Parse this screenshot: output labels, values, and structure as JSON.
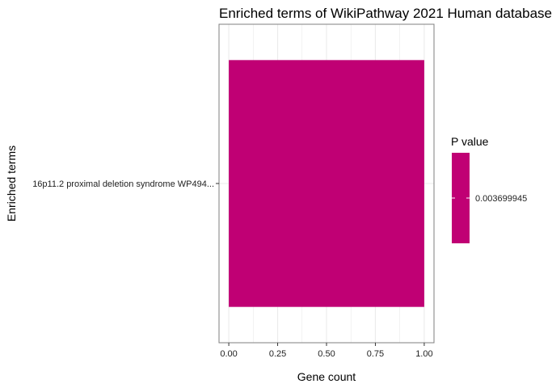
{
  "chart_data": {
    "type": "bar",
    "orientation": "horizontal",
    "title": "Enriched terms of WikiPathway 2021 Human database",
    "xlabel": "Gene count",
    "ylabel": "Enriched terms",
    "categories": [
      "16p11.2 proximal deletion syndrome WP494..."
    ],
    "values": [
      1
    ],
    "xlim": [
      -0.05,
      1.05
    ],
    "xticks": [
      "0.00",
      "0.25",
      "0.50",
      "0.75",
      "1.00"
    ],
    "grid": true,
    "legend": {
      "title": "P value",
      "placement": "right",
      "values": [
        "0.003699945"
      ]
    },
    "colors": {
      "bar": "#C00074",
      "grid": "#EBEBEB",
      "border": "#7F7F7F"
    }
  }
}
